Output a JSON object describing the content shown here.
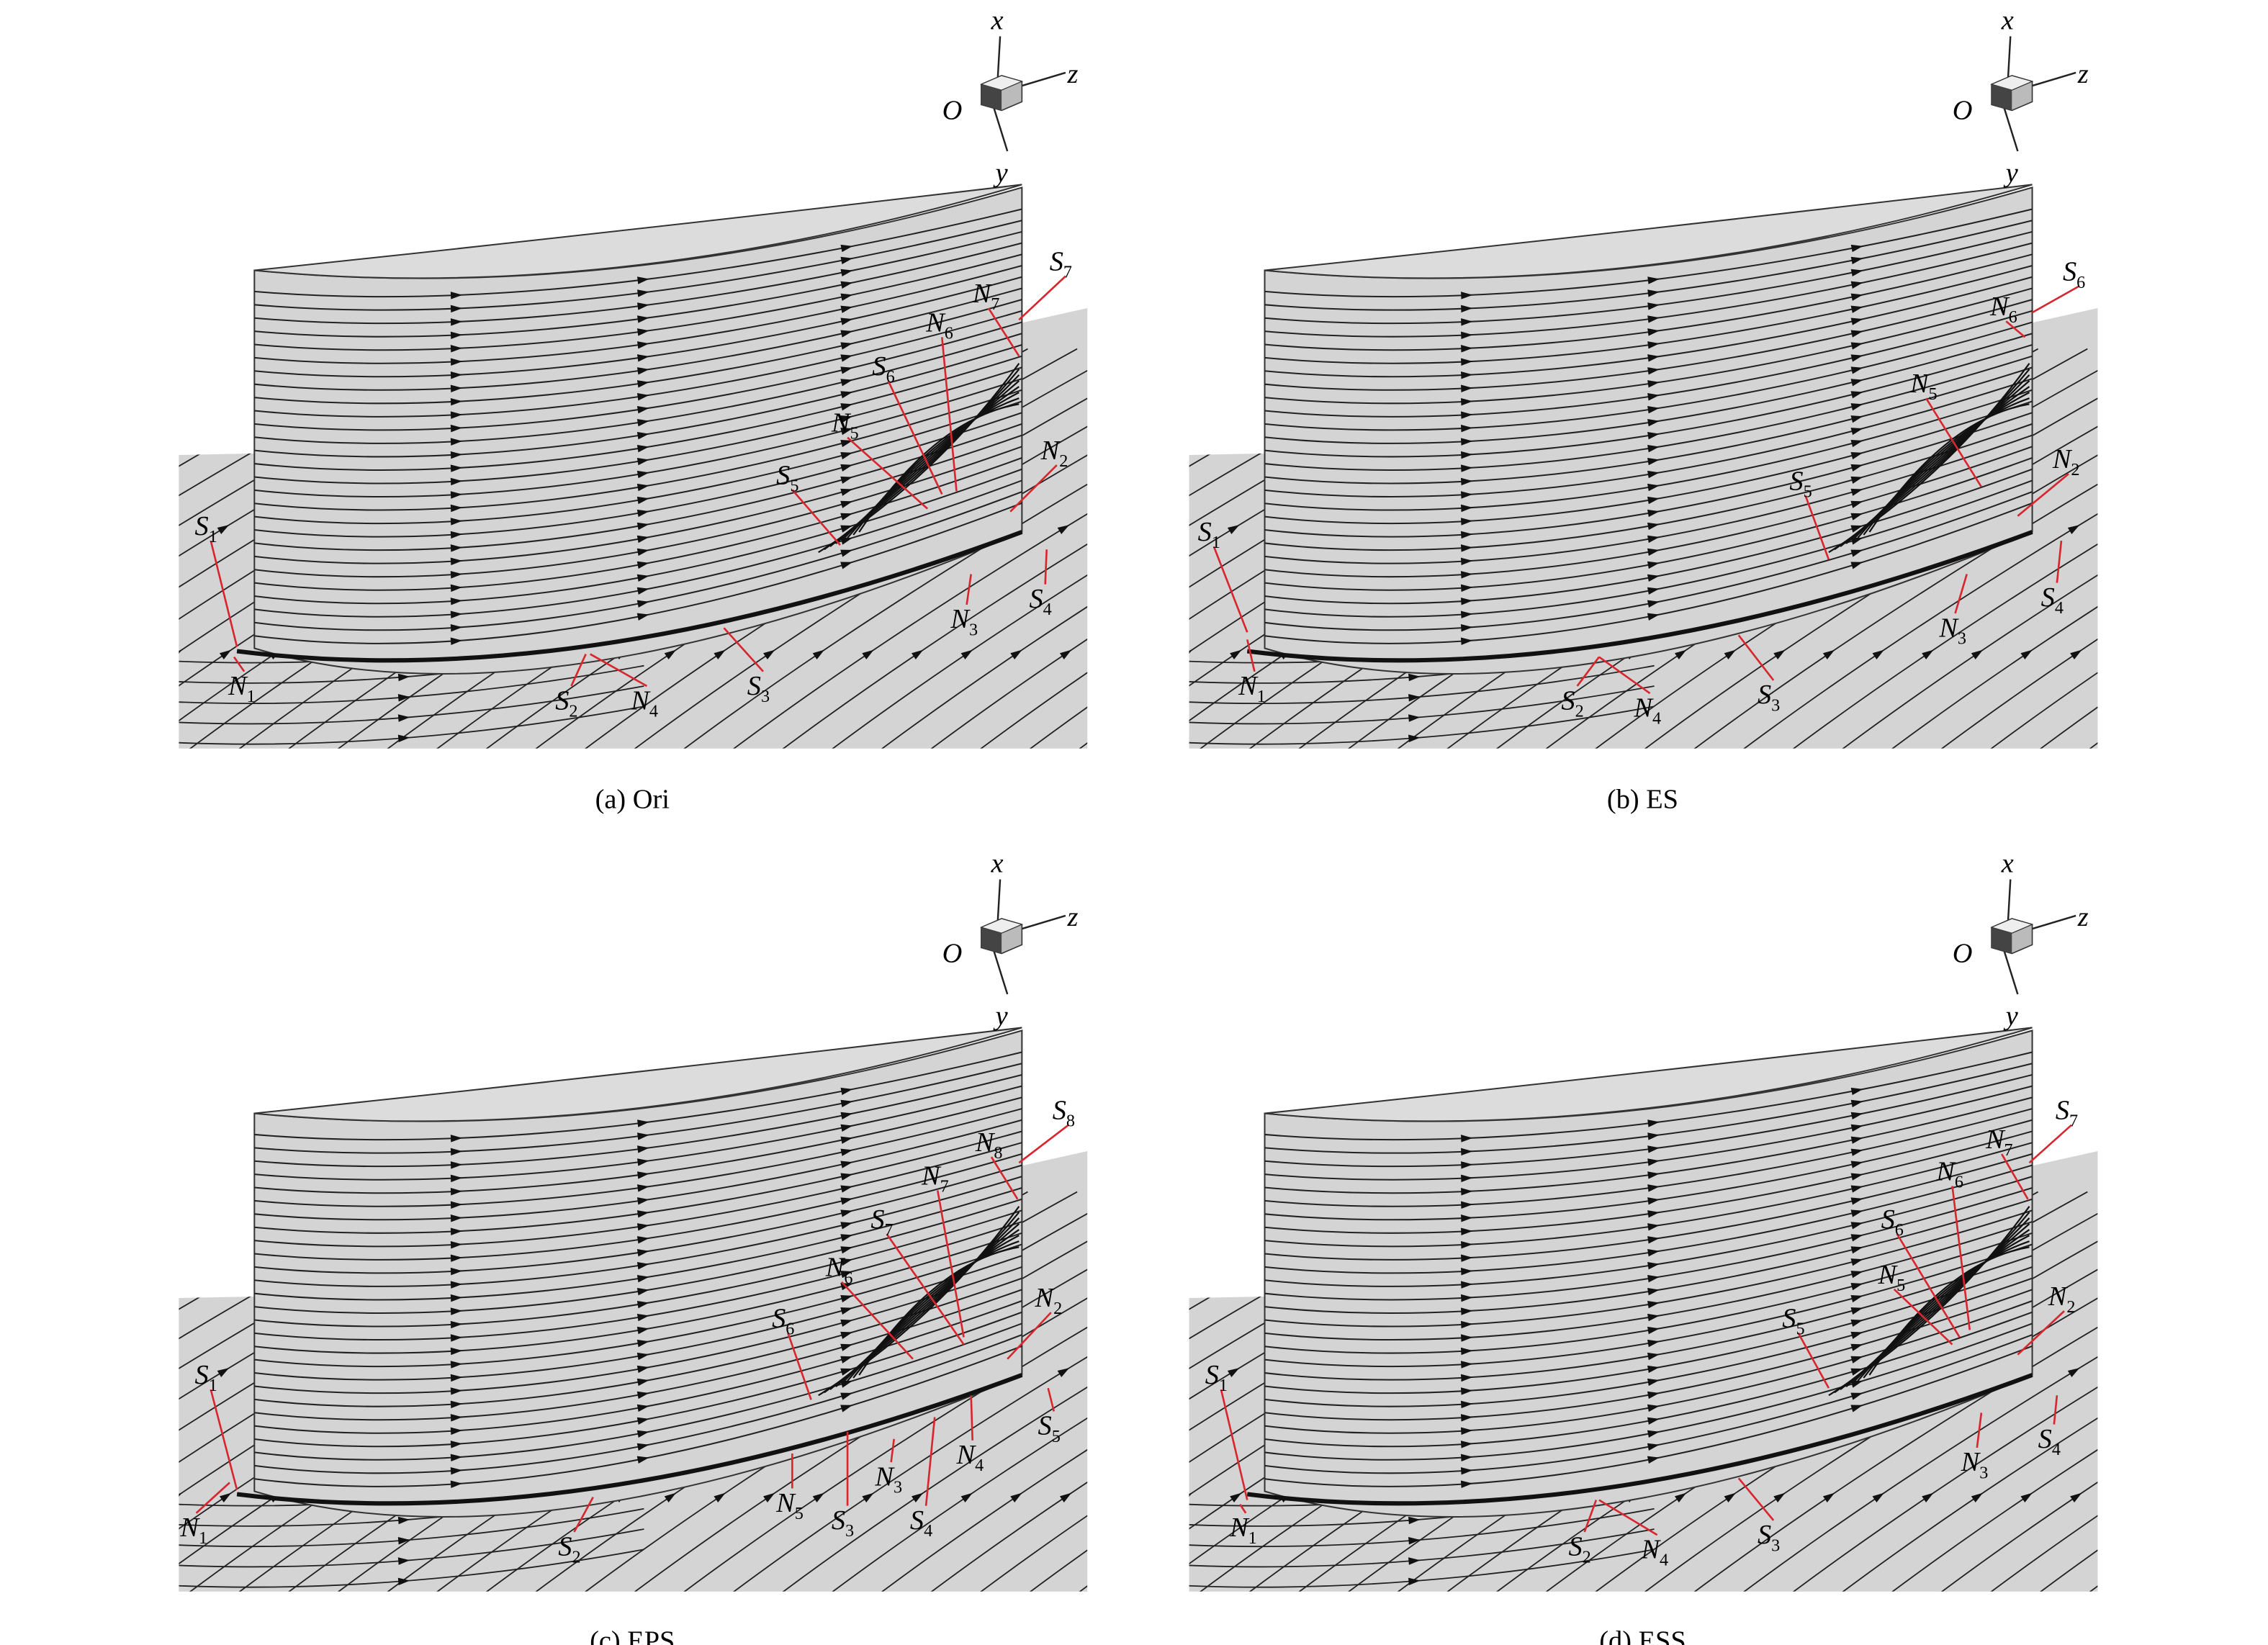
{
  "panels": [
    {
      "caption": "(a) Ori",
      "axes": {
        "x": "x",
        "y": "y",
        "z": "z",
        "origin": "O"
      },
      "labels": [
        {
          "letter": "S",
          "sub": "1"
        },
        {
          "letter": "N",
          "sub": "1"
        },
        {
          "letter": "S",
          "sub": "2"
        },
        {
          "letter": "N",
          "sub": "4"
        },
        {
          "letter": "S",
          "sub": "3"
        },
        {
          "letter": "N",
          "sub": "3"
        },
        {
          "letter": "S",
          "sub": "4"
        },
        {
          "letter": "N",
          "sub": "2"
        },
        {
          "letter": "S",
          "sub": "5"
        },
        {
          "letter": "N",
          "sub": "5"
        },
        {
          "letter": "S",
          "sub": "6"
        },
        {
          "letter": "N",
          "sub": "6"
        },
        {
          "letter": "N",
          "sub": "7"
        },
        {
          "letter": "S",
          "sub": "7"
        }
      ]
    },
    {
      "caption": "(b) ES",
      "axes": {
        "x": "x",
        "y": "y",
        "z": "z",
        "origin": "O"
      },
      "labels": [
        {
          "letter": "S",
          "sub": "1"
        },
        {
          "letter": "N",
          "sub": "1"
        },
        {
          "letter": "S",
          "sub": "2"
        },
        {
          "letter": "N",
          "sub": "4"
        },
        {
          "letter": "S",
          "sub": "3"
        },
        {
          "letter": "N",
          "sub": "3"
        },
        {
          "letter": "S",
          "sub": "4"
        },
        {
          "letter": "N",
          "sub": "2"
        },
        {
          "letter": "S",
          "sub": "5"
        },
        {
          "letter": "N",
          "sub": "5"
        },
        {
          "letter": "N",
          "sub": "6"
        },
        {
          "letter": "S",
          "sub": "6"
        }
      ]
    },
    {
      "caption": "(c) EPS",
      "axes": {
        "x": "x",
        "y": "y",
        "z": "z",
        "origin": "O"
      },
      "labels": [
        {
          "letter": "S",
          "sub": "1"
        },
        {
          "letter": "N",
          "sub": "1"
        },
        {
          "letter": "S",
          "sub": "2"
        },
        {
          "letter": "N",
          "sub": "5"
        },
        {
          "letter": "S",
          "sub": "3"
        },
        {
          "letter": "S",
          "sub": "4"
        },
        {
          "letter": "N",
          "sub": "3"
        },
        {
          "letter": "N",
          "sub": "4"
        },
        {
          "letter": "S",
          "sub": "5"
        },
        {
          "letter": "N",
          "sub": "2"
        },
        {
          "letter": "S",
          "sub": "6"
        },
        {
          "letter": "N",
          "sub": "6"
        },
        {
          "letter": "S",
          "sub": "7"
        },
        {
          "letter": "N",
          "sub": "7"
        },
        {
          "letter": "N",
          "sub": "8"
        },
        {
          "letter": "S",
          "sub": "8"
        }
      ]
    },
    {
      "caption": "(d) ESS",
      "axes": {
        "x": "x",
        "y": "y",
        "z": "z",
        "origin": "O"
      },
      "labels": [
        {
          "letter": "S",
          "sub": "1"
        },
        {
          "letter": "N",
          "sub": "1"
        },
        {
          "letter": "S",
          "sub": "2"
        },
        {
          "letter": "N",
          "sub": "4"
        },
        {
          "letter": "S",
          "sub": "3"
        },
        {
          "letter": "N",
          "sub": "3"
        },
        {
          "letter": "S",
          "sub": "4"
        },
        {
          "letter": "N",
          "sub": "2"
        },
        {
          "letter": "S",
          "sub": "5"
        },
        {
          "letter": "N",
          "sub": "5"
        },
        {
          "letter": "S",
          "sub": "6"
        },
        {
          "letter": "N",
          "sub": "6"
        },
        {
          "letter": "N",
          "sub": "7"
        },
        {
          "letter": "S",
          "sub": "7"
        }
      ]
    }
  ]
}
